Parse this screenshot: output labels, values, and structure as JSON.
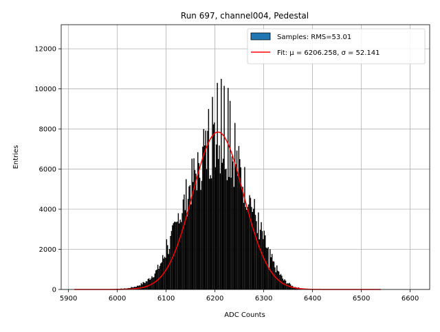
{
  "chart_data": {
    "type": "bar",
    "title": "Run 697, channel004, Pedestal",
    "xlabel": "ADC Counts",
    "ylabel": "Entries",
    "xlim": [
      5885,
      6640
    ],
    "ylim": [
      0,
      13200
    ],
    "grid": true,
    "legend_position": "top-right",
    "x_ticks": [
      5900,
      6000,
      6100,
      6200,
      6300,
      6400,
      6500,
      6600
    ],
    "y_ticks": [
      0,
      2000,
      4000,
      6000,
      8000,
      10000,
      12000
    ],
    "bin_width": 2,
    "histogram_envelope": [
      {
        "x": 6000,
        "y": 30
      },
      {
        "x": 6020,
        "y": 60
      },
      {
        "x": 6040,
        "y": 180
      },
      {
        "x": 6060,
        "y": 450
      },
      {
        "x": 6080,
        "y": 1000
      },
      {
        "x": 6100,
        "y": 2000
      },
      {
        "x": 6120,
        "y": 3400
      },
      {
        "x": 6140,
        "y": 4900
      },
      {
        "x": 6160,
        "y": 6300
      },
      {
        "x": 6180,
        "y": 7300
      },
      {
        "x": 6200,
        "y": 7800
      },
      {
        "x": 6220,
        "y": 7700
      },
      {
        "x": 6240,
        "y": 7000
      },
      {
        "x": 6260,
        "y": 5600
      },
      {
        "x": 6280,
        "y": 4100
      },
      {
        "x": 6300,
        "y": 2600
      },
      {
        "x": 6320,
        "y": 1300
      },
      {
        "x": 6340,
        "y": 500
      },
      {
        "x": 6360,
        "y": 150
      },
      {
        "x": 6380,
        "y": 40
      },
      {
        "x": 6400,
        "y": 10
      }
    ],
    "histogram_peaks": [
      {
        "x": 6213,
        "y": 10500
      },
      {
        "x": 6205,
        "y": 10300
      },
      {
        "x": 6218,
        "y": 10150
      },
      {
        "x": 6227,
        "y": 10050
      },
      {
        "x": 6194,
        "y": 9600
      },
      {
        "x": 6231,
        "y": 9400
      },
      {
        "x": 6186,
        "y": 9000
      },
      {
        "x": 6240,
        "y": 8300
      },
      {
        "x": 6176,
        "y": 8000
      },
      {
        "x": 6250,
        "y": 6500
      },
      {
        "x": 6166,
        "y": 6300
      },
      {
        "x": 6148,
        "y": 5200
      },
      {
        "x": 6270,
        "y": 4700
      },
      {
        "x": 6125,
        "y": 3800
      },
      {
        "x": 6100,
        "y": 2500
      },
      {
        "x": 6290,
        "y": 2500
      },
      {
        "x": 6310,
        "y": 1000
      }
    ],
    "series": [
      {
        "name": "Samples: RMS=53.01",
        "kind": "histogram",
        "color": "#000000",
        "legend_color": "#1f77b4"
      },
      {
        "name": "Fit: μ = 6206.258, σ = 52.141",
        "kind": "gaussian",
        "color": "#ff0000",
        "amplitude": 7850,
        "mu": 6206.258,
        "sigma": 52.141,
        "x_range": [
          5912,
          6540
        ]
      }
    ]
  }
}
